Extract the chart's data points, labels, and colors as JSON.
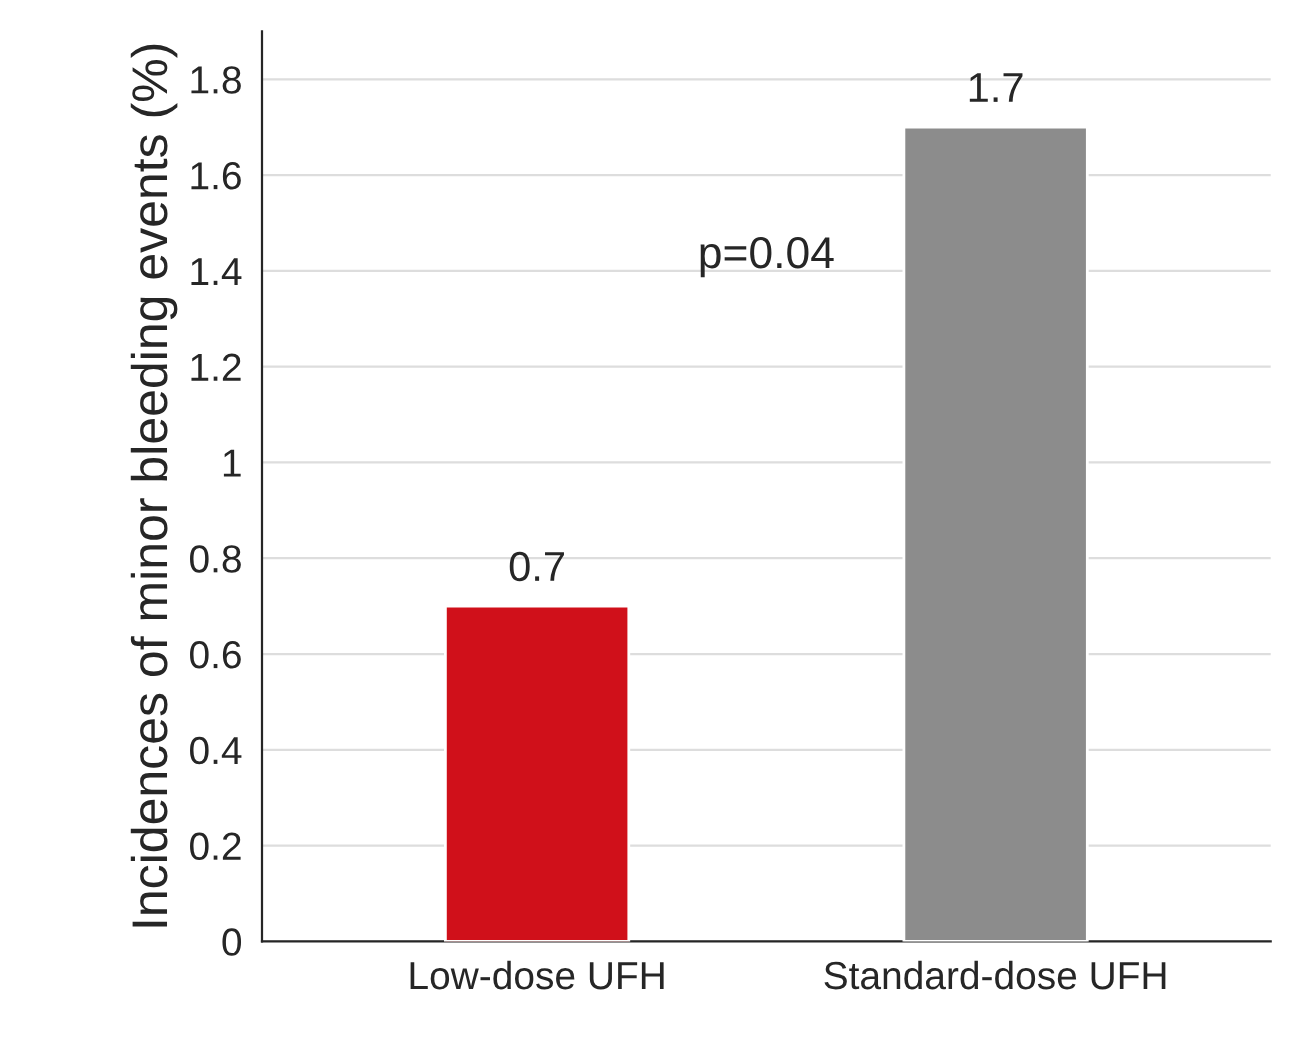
{
  "chart_data": {
    "type": "bar",
    "categories": [
      "Low-dose UFH",
      "Standard-dose UFH"
    ],
    "values": [
      0.7,
      1.7
    ],
    "colors": [
      "#d0101a",
      "#8c8c8c"
    ],
    "ylabel": "Incidences of minor bleeding events (%)",
    "ylim": [
      0,
      1.9
    ],
    "yticks": [
      0,
      0.2,
      0.4,
      0.6,
      0.8,
      1,
      1.2,
      1.4,
      1.6,
      1.8
    ],
    "grid": "y",
    "data_labels": true,
    "annotations": [
      "p=0.04"
    ]
  }
}
